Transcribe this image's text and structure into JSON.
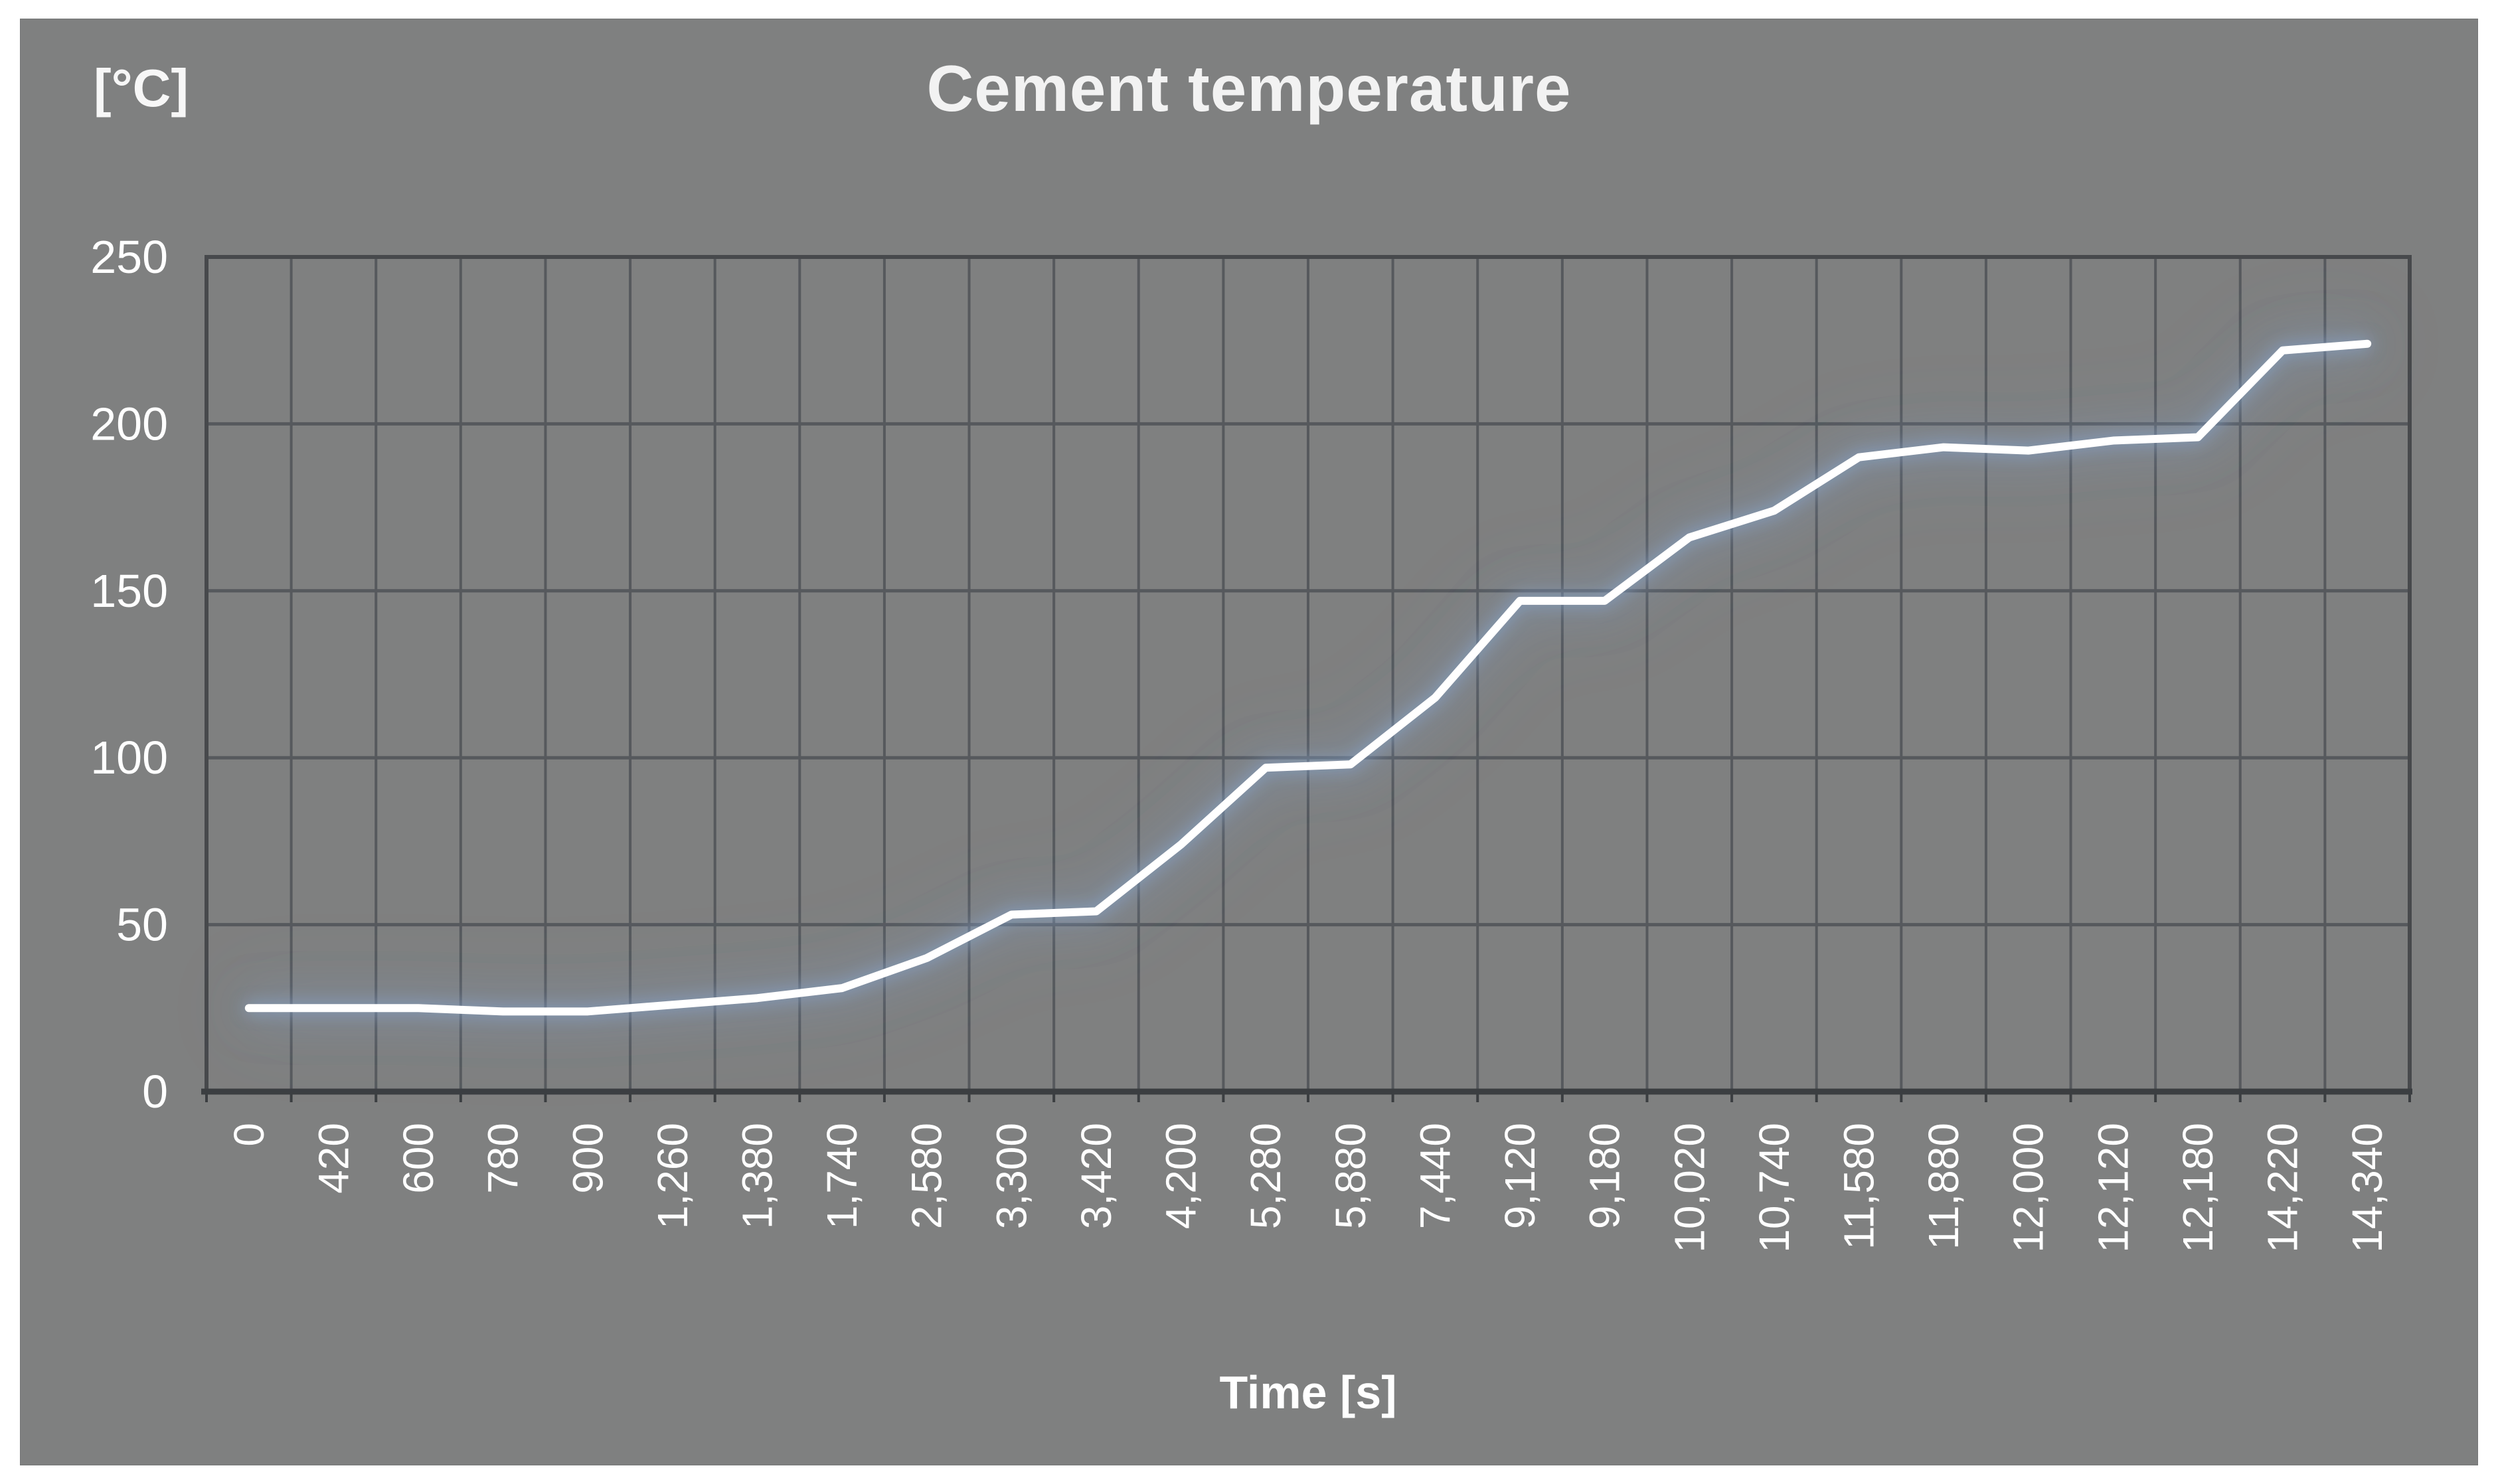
{
  "chart": {
    "title": "Cement temperature",
    "unit_label": "[°C]",
    "x_axis_title": "Time [s]"
  },
  "chart_data": {
    "type": "line",
    "title": "Cement temperature",
    "xlabel": "Time [s]",
    "ylabel": "[°C]",
    "ylim": [
      0,
      250
    ],
    "y_ticks": [
      250,
      200,
      150,
      100,
      50,
      0
    ],
    "grid": true,
    "legend": false,
    "categories": [
      "0",
      "420",
      "600",
      "780",
      "900",
      "1,260",
      "1,380",
      "1,740",
      "2,580",
      "3,300",
      "3,420",
      "4,200",
      "5,280",
      "5,880",
      "7,440",
      "9,120",
      "9,180",
      "10,020",
      "10,740",
      "11,580",
      "11,880",
      "12,000",
      "12,120",
      "12,180",
      "14,220",
      "14,340"
    ],
    "series": [
      {
        "name": "Cement temperature",
        "values": [
          25,
          25,
          25,
          24,
          24,
          26,
          28,
          31,
          40,
          53,
          54,
          74,
          97,
          98,
          118,
          147,
          147,
          166,
          174,
          190,
          193,
          192,
          195,
          196,
          222,
          224
        ]
      }
    ],
    "colors": {
      "plot_background": "#7f8080",
      "gridline": "#56595d",
      "plot_border": "#47494c",
      "bottom_axis": "#3b3e41",
      "series_line": "#ffffff",
      "series_glow": "#87a5cd",
      "text": "#ffffff"
    }
  }
}
